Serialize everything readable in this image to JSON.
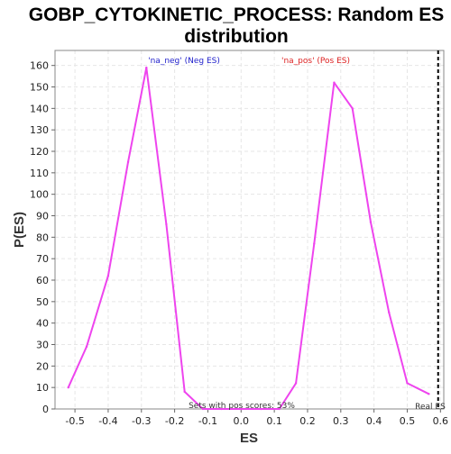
{
  "chart_data": {
    "type": "line",
    "title_lines": [
      "GOBP_CYTOKINETIC_PROCESS: Random ES",
      "distribution"
    ],
    "xlabel": "ES",
    "ylabel": "P(ES)",
    "xlim": [
      -0.56,
      0.61
    ],
    "ylim": [
      0,
      167
    ],
    "grid": true,
    "x_ticks": [
      -0.5,
      -0.4,
      -0.3,
      -0.2,
      -0.1,
      0.0,
      0.1,
      0.2,
      0.3,
      0.4,
      0.5,
      0.6
    ],
    "x_tick_labels": [
      "-0.5",
      "-0.4",
      "-0.3",
      "-0.2",
      "-0.1",
      "0.0",
      "0.1",
      "0.2",
      "0.3",
      "0.4",
      "0.5",
      "0.6"
    ],
    "y_ticks": [
      0,
      10,
      20,
      30,
      40,
      50,
      60,
      70,
      80,
      90,
      100,
      110,
      120,
      130,
      140,
      150,
      160
    ],
    "y_tick_labels": [
      "0",
      "10",
      "20",
      "30",
      "40",
      "50",
      "60",
      "70",
      "80",
      "90",
      "100",
      "110",
      "120",
      "130",
      "140",
      "150",
      "160"
    ],
    "series": [
      {
        "color": "#ee44ee",
        "x": [
          -0.52,
          -0.465,
          -0.4,
          -0.34,
          -0.285,
          -0.225,
          -0.17,
          -0.115,
          -0.06,
          0.0,
          0.06,
          0.115,
          0.165,
          0.22,
          0.28,
          0.335,
          0.39,
          0.445,
          0.5,
          0.565
        ],
        "y": [
          10,
          29,
          62,
          115,
          159,
          86,
          8,
          0,
          0,
          0,
          0,
          0,
          12,
          77,
          152,
          140,
          87,
          45,
          12,
          7
        ]
      }
    ],
    "annotations": {
      "neg_label": "'na_neg' (Neg ES)",
      "pos_label": "'na_pos' (Pos ES)",
      "sets_label": "Sets with pos scores: 53%",
      "real_es_label": "Real ES",
      "neg_color": "#2222cc",
      "pos_color": "#dd2222"
    },
    "real_es_x": 0.593
  }
}
